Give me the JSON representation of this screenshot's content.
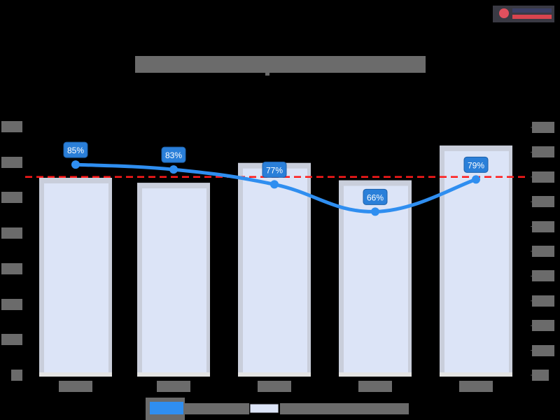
{
  "title": "[redacted chart title]",
  "logo": {
    "label": "[redacted logo]"
  },
  "colors": {
    "background": "#000000",
    "bar_fill": "#dce4f7",
    "bar_border": "#c9cedb",
    "line": "#2f8ef0",
    "label_bg": "#2a7fd9",
    "target_line": "#ff1a1a",
    "redaction": "#6b6b6b"
  },
  "left_axis": {
    "tick_labels": [
      "[redacted]",
      "[redacted]",
      "[redacted]",
      "[redacted]",
      "[redacted]",
      "[redacted]",
      "[redacted]",
      "[redacted]"
    ]
  },
  "right_axis": {
    "tick_labels": [
      "[redacted]",
      "[redacted]",
      "[redacted]",
      "[redacted]",
      "[redacted]",
      "[redacted]",
      "[redacted]",
      "[redacted]",
      "[redacted]",
      "[redacted]",
      "[redacted]"
    ]
  },
  "legend": [
    {
      "label": "[redacted line series]",
      "color": "#2f8ef0"
    },
    {
      "label": "[redacted bar series]",
      "color": "#dce4f7"
    }
  ],
  "chart_data": {
    "type": "bar",
    "title": "[redacted]",
    "categories": [
      "[redacted]",
      "[redacted]",
      "[redacted]",
      "[redacted]",
      "[redacted]"
    ],
    "series": [
      {
        "name": "[redacted bar series]",
        "type": "bar",
        "axis": "left",
        "values_relative_of_axis_max": [
          0.8,
          0.78,
          0.86,
          0.79,
          0.93
        ]
      },
      {
        "name": "[redacted line series]",
        "type": "line",
        "axis": "right",
        "values": [
          85,
          83,
          77,
          66,
          79
        ],
        "labels": [
          "85%",
          "83%",
          "77%",
          "66%",
          "79%"
        ]
      }
    ],
    "reference_line": {
      "axis": "right",
      "value": 80,
      "style": "dashed",
      "color": "#ff1a1a"
    },
    "right_ylim": [
      0,
      100
    ],
    "left_ticks_count": 8,
    "right_ticks_count": 11,
    "legend_position": "bottom",
    "grid": false
  }
}
